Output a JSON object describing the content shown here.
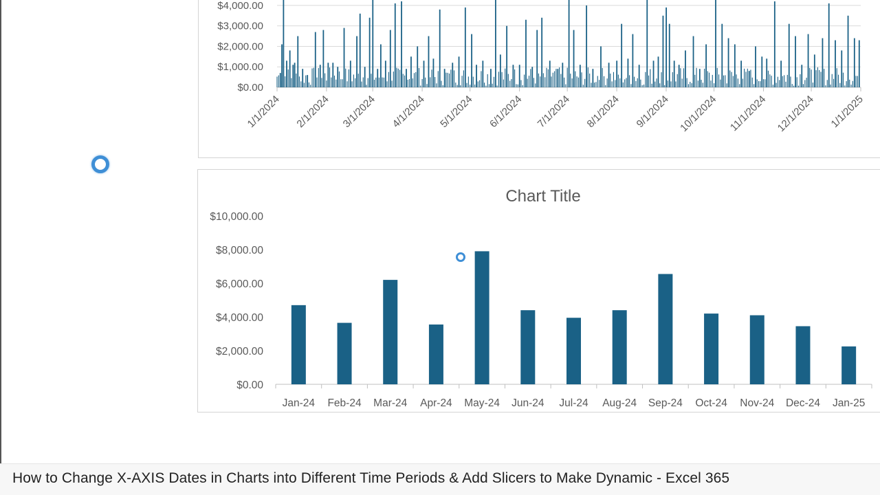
{
  "caption": "How to Change X-AXIS Dates in Charts into Different Time Periods & Add Slicers to Make Dynamic - Excel 365",
  "chart_data": [
    {
      "type": "bar",
      "title": "",
      "x_axis": "date (daily)",
      "xlim": [
        "1/1/2024",
        "1/1/2025"
      ],
      "ylim": [
        0,
        4500
      ],
      "y_tick_labels": [
        "$0.00",
        "$1,000.00",
        "$2,000.00",
        "$3,000.00",
        "$4,000.00"
      ],
      "x_tick_labels": [
        "1/1/2024",
        "2/1/2024",
        "3/1/2024",
        "4/1/2024",
        "5/1/2024",
        "6/1/2024",
        "7/1/2024",
        "8/1/2024",
        "9/1/2024",
        "10/1/2024",
        "11/1/2024",
        "12/1/2024",
        "1/1/2025"
      ],
      "grid": true,
      "series": [
        {
          "color": "#1a6186",
          "points": [
            {
              "x": "1/3/2024",
              "y": 700
            },
            {
              "x": "1/4/2024",
              "y": 2100
            },
            {
              "x": "1/5/2024",
              "y": 4600
            },
            {
              "x": "1/7/2024",
              "y": 1300
            },
            {
              "x": "1/9/2024",
              "y": 1800
            },
            {
              "x": "1/11/2024",
              "y": 1100
            },
            {
              "x": "1/12/2024",
              "y": 1200
            },
            {
              "x": "1/14/2024",
              "y": 2500
            },
            {
              "x": "1/17/2024",
              "y": 900
            },
            {
              "x": "1/20/2024",
              "y": 600
            },
            {
              "x": "1/25/2024",
              "y": 2700
            },
            {
              "x": "1/28/2024",
              "y": 1100
            },
            {
              "x": "1/30/2024",
              "y": 2800
            },
            {
              "x": "2/2/2024",
              "y": 1200
            },
            {
              "x": "2/5/2024",
              "y": 1200
            },
            {
              "x": "2/8/2024",
              "y": 1000
            },
            {
              "x": "2/12/2024",
              "y": 2900
            },
            {
              "x": "2/16/2024",
              "y": 1300
            },
            {
              "x": "2/20/2024",
              "y": 2500
            },
            {
              "x": "2/22/2024",
              "y": 3600
            },
            {
              "x": "2/25/2024",
              "y": 1000
            },
            {
              "x": "2/28/2024",
              "y": 3400
            },
            {
              "x": "3/1/2024",
              "y": 4700
            },
            {
              "x": "3/4/2024",
              "y": 900
            },
            {
              "x": "3/6/2024",
              "y": 2100
            },
            {
              "x": "3/9/2024",
              "y": 1300
            },
            {
              "x": "3/12/2024",
              "y": 2800
            },
            {
              "x": "3/15/2024",
              "y": 4100
            },
            {
              "x": "3/19/2024",
              "y": 4200
            },
            {
              "x": "3/22/2024",
              "y": 900
            },
            {
              "x": "3/25/2024",
              "y": 1500
            },
            {
              "x": "3/29/2024",
              "y": 2000
            },
            {
              "x": "4/2/2024",
              "y": 1300
            },
            {
              "x": "4/5/2024",
              "y": 2500
            },
            {
              "x": "4/8/2024",
              "y": 1400
            },
            {
              "x": "4/12/2024",
              "y": 3800
            },
            {
              "x": "4/15/2024",
              "y": 900
            },
            {
              "x": "4/20/2024",
              "y": 1200
            },
            {
              "x": "4/24/2024",
              "y": 1500
            },
            {
              "x": "4/28/2024",
              "y": 3900
            },
            {
              "x": "5/2/2024",
              "y": 2600
            },
            {
              "x": "5/5/2024",
              "y": 1100
            },
            {
              "x": "5/9/2024",
              "y": 1300
            },
            {
              "x": "5/14/2024",
              "y": 900
            },
            {
              "x": "5/17/2024",
              "y": 4600
            },
            {
              "x": "5/20/2024",
              "y": 1600
            },
            {
              "x": "5/24/2024",
              "y": 3000
            },
            {
              "x": "5/28/2024",
              "y": 1100
            },
            {
              "x": "6/1/2024",
              "y": 1100
            },
            {
              "x": "6/5/2024",
              "y": 3300
            },
            {
              "x": "6/9/2024",
              "y": 1000
            },
            {
              "x": "6/12/2024",
              "y": 2800
            },
            {
              "x": "6/15/2024",
              "y": 3400
            },
            {
              "x": "6/20/2024",
              "y": 1300
            },
            {
              "x": "6/25/2024",
              "y": 900
            },
            {
              "x": "6/28/2024",
              "y": 1200
            },
            {
              "x": "7/2/2024",
              "y": 4400
            },
            {
              "x": "7/5/2024",
              "y": 2800
            },
            {
              "x": "7/9/2024",
              "y": 1100
            },
            {
              "x": "7/13/2024",
              "y": 4000
            },
            {
              "x": "7/17/2024",
              "y": 900
            },
            {
              "x": "7/22/2024",
              "y": 2000
            },
            {
              "x": "7/27/2024",
              "y": 1200
            },
            {
              "x": "8/1/2024",
              "y": 1300
            },
            {
              "x": "8/4/2024",
              "y": 3100
            },
            {
              "x": "8/8/2024",
              "y": 1400
            },
            {
              "x": "8/11/2024",
              "y": 2600
            },
            {
              "x": "8/15/2024",
              "y": 1100
            },
            {
              "x": "8/20/2024",
              "y": 4400
            },
            {
              "x": "8/24/2024",
              "y": 1300
            },
            {
              "x": "8/27/2024",
              "y": 1500
            },
            {
              "x": "8/30/2024",
              "y": 3500
            },
            {
              "x": "9/1/2024",
              "y": 3900
            },
            {
              "x": "9/3/2024",
              "y": 3100
            },
            {
              "x": "9/6/2024",
              "y": 1300
            },
            {
              "x": "9/9/2024",
              "y": 1100
            },
            {
              "x": "9/13/2024",
              "y": 1800
            },
            {
              "x": "9/18/2024",
              "y": 2500
            },
            {
              "x": "9/22/2024",
              "y": 900
            },
            {
              "x": "9/26/2024",
              "y": 2100
            },
            {
              "x": "10/2/2024",
              "y": 4500
            },
            {
              "x": "10/6/2024",
              "y": 3100
            },
            {
              "x": "10/10/2024",
              "y": 2400
            },
            {
              "x": "10/14/2024",
              "y": 2100
            },
            {
              "x": "10/18/2024",
              "y": 1300
            },
            {
              "x": "10/23/2024",
              "y": 800
            },
            {
              "x": "10/27/2024",
              "y": 2000
            },
            {
              "x": "10/31/2024",
              "y": 1500
            },
            {
              "x": "11/3/2024",
              "y": 1400
            },
            {
              "x": "11/8/2024",
              "y": 4200
            },
            {
              "x": "11/12/2024",
              "y": 1300
            },
            {
              "x": "11/17/2024",
              "y": 3100
            },
            {
              "x": "11/21/2024",
              "y": 2500
            },
            {
              "x": "11/25/2024",
              "y": 1100
            },
            {
              "x": "11/29/2024",
              "y": 2600
            },
            {
              "x": "12/3/2024",
              "y": 1600
            },
            {
              "x": "12/8/2024",
              "y": 2400
            },
            {
              "x": "12/12/2024",
              "y": 4100
            },
            {
              "x": "12/16/2024",
              "y": 2300
            },
            {
              "x": "12/20/2024",
              "y": 1800
            },
            {
              "x": "12/24/2024",
              "y": 3500
            },
            {
              "x": "12/28/2024",
              "y": 2400
            },
            {
              "x": "12/31/2024",
              "y": 2300
            }
          ]
        }
      ]
    },
    {
      "type": "bar",
      "title": "Chart Title",
      "categories": [
        "Jan-24",
        "Feb-24",
        "Mar-24",
        "Apr-24",
        "May-24",
        "Jun-24",
        "Jul-24",
        "Aug-24",
        "Sep-24",
        "Oct-24",
        "Nov-24",
        "Dec-24",
        "Jan-25"
      ],
      "values": [
        4700,
        3650,
        6200,
        3550,
        7900,
        4400,
        3950,
        4400,
        6550,
        4200,
        4100,
        3450,
        2250
      ],
      "ylim": [
        0,
        10000
      ],
      "y_tick_labels": [
        "$0.00",
        "$2,000.00",
        "$4,000.00",
        "$6,000.00",
        "$8,000.00",
        "$10,000.00"
      ],
      "grid": false,
      "bar_color": "#1a6186"
    }
  ]
}
